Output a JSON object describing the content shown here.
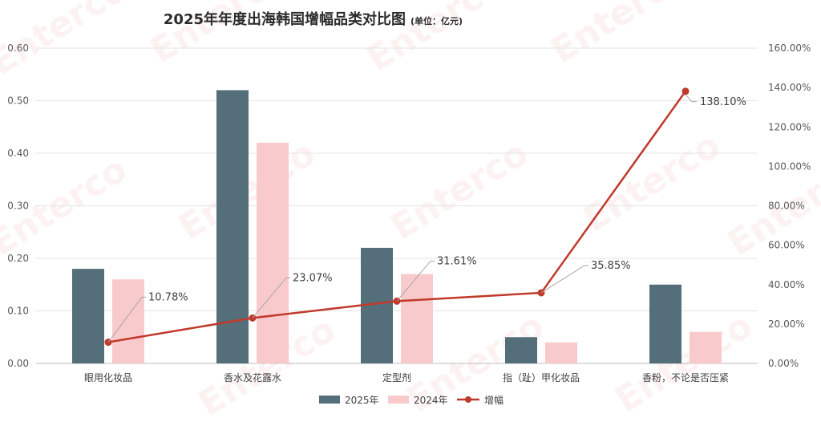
{
  "chart_data": {
    "type": "bar",
    "title": "2025年年度出海韩国增幅品类对比图",
    "subtitle": "(单位：亿元)",
    "categories": [
      "眼用化妆品",
      "香水及花露水",
      "定型剂",
      "指（趾）甲化妆品",
      "香粉，不论是否压紧"
    ],
    "series": [
      {
        "name": "2025年",
        "type": "bar",
        "axis": "left",
        "color": "#546e7a",
        "values": [
          0.18,
          0.52,
          0.22,
          0.05,
          0.15
        ]
      },
      {
        "name": "2024年",
        "type": "bar",
        "axis": "left",
        "color": "#f9cacb",
        "values": [
          0.16,
          0.42,
          0.17,
          0.04,
          0.06
        ]
      },
      {
        "name": "增幅",
        "type": "line",
        "axis": "right",
        "color": "#c0392b",
        "values": [
          10.78,
          23.07,
          31.61,
          35.85,
          138.1
        ]
      }
    ],
    "data_labels": [
      "10.78%",
      "23.07%",
      "31.61%",
      "35.85%",
      "138.10%"
    ],
    "y_left": {
      "ylim": [
        0,
        0.6
      ],
      "ticks": [
        "0.00",
        "0.10",
        "0.20",
        "0.30",
        "0.40",
        "0.50",
        "0.60"
      ]
    },
    "y_right": {
      "ylim": [
        0,
        160
      ],
      "ticks": [
        "0.00%",
        "20.00%",
        "40.00%",
        "60.00%",
        "80.00%",
        "100.00%",
        "120.00%",
        "140.00%",
        "160.00%"
      ]
    },
    "grid": true,
    "legend_position": "bottom"
  },
  "watermark_text": "Enterco"
}
